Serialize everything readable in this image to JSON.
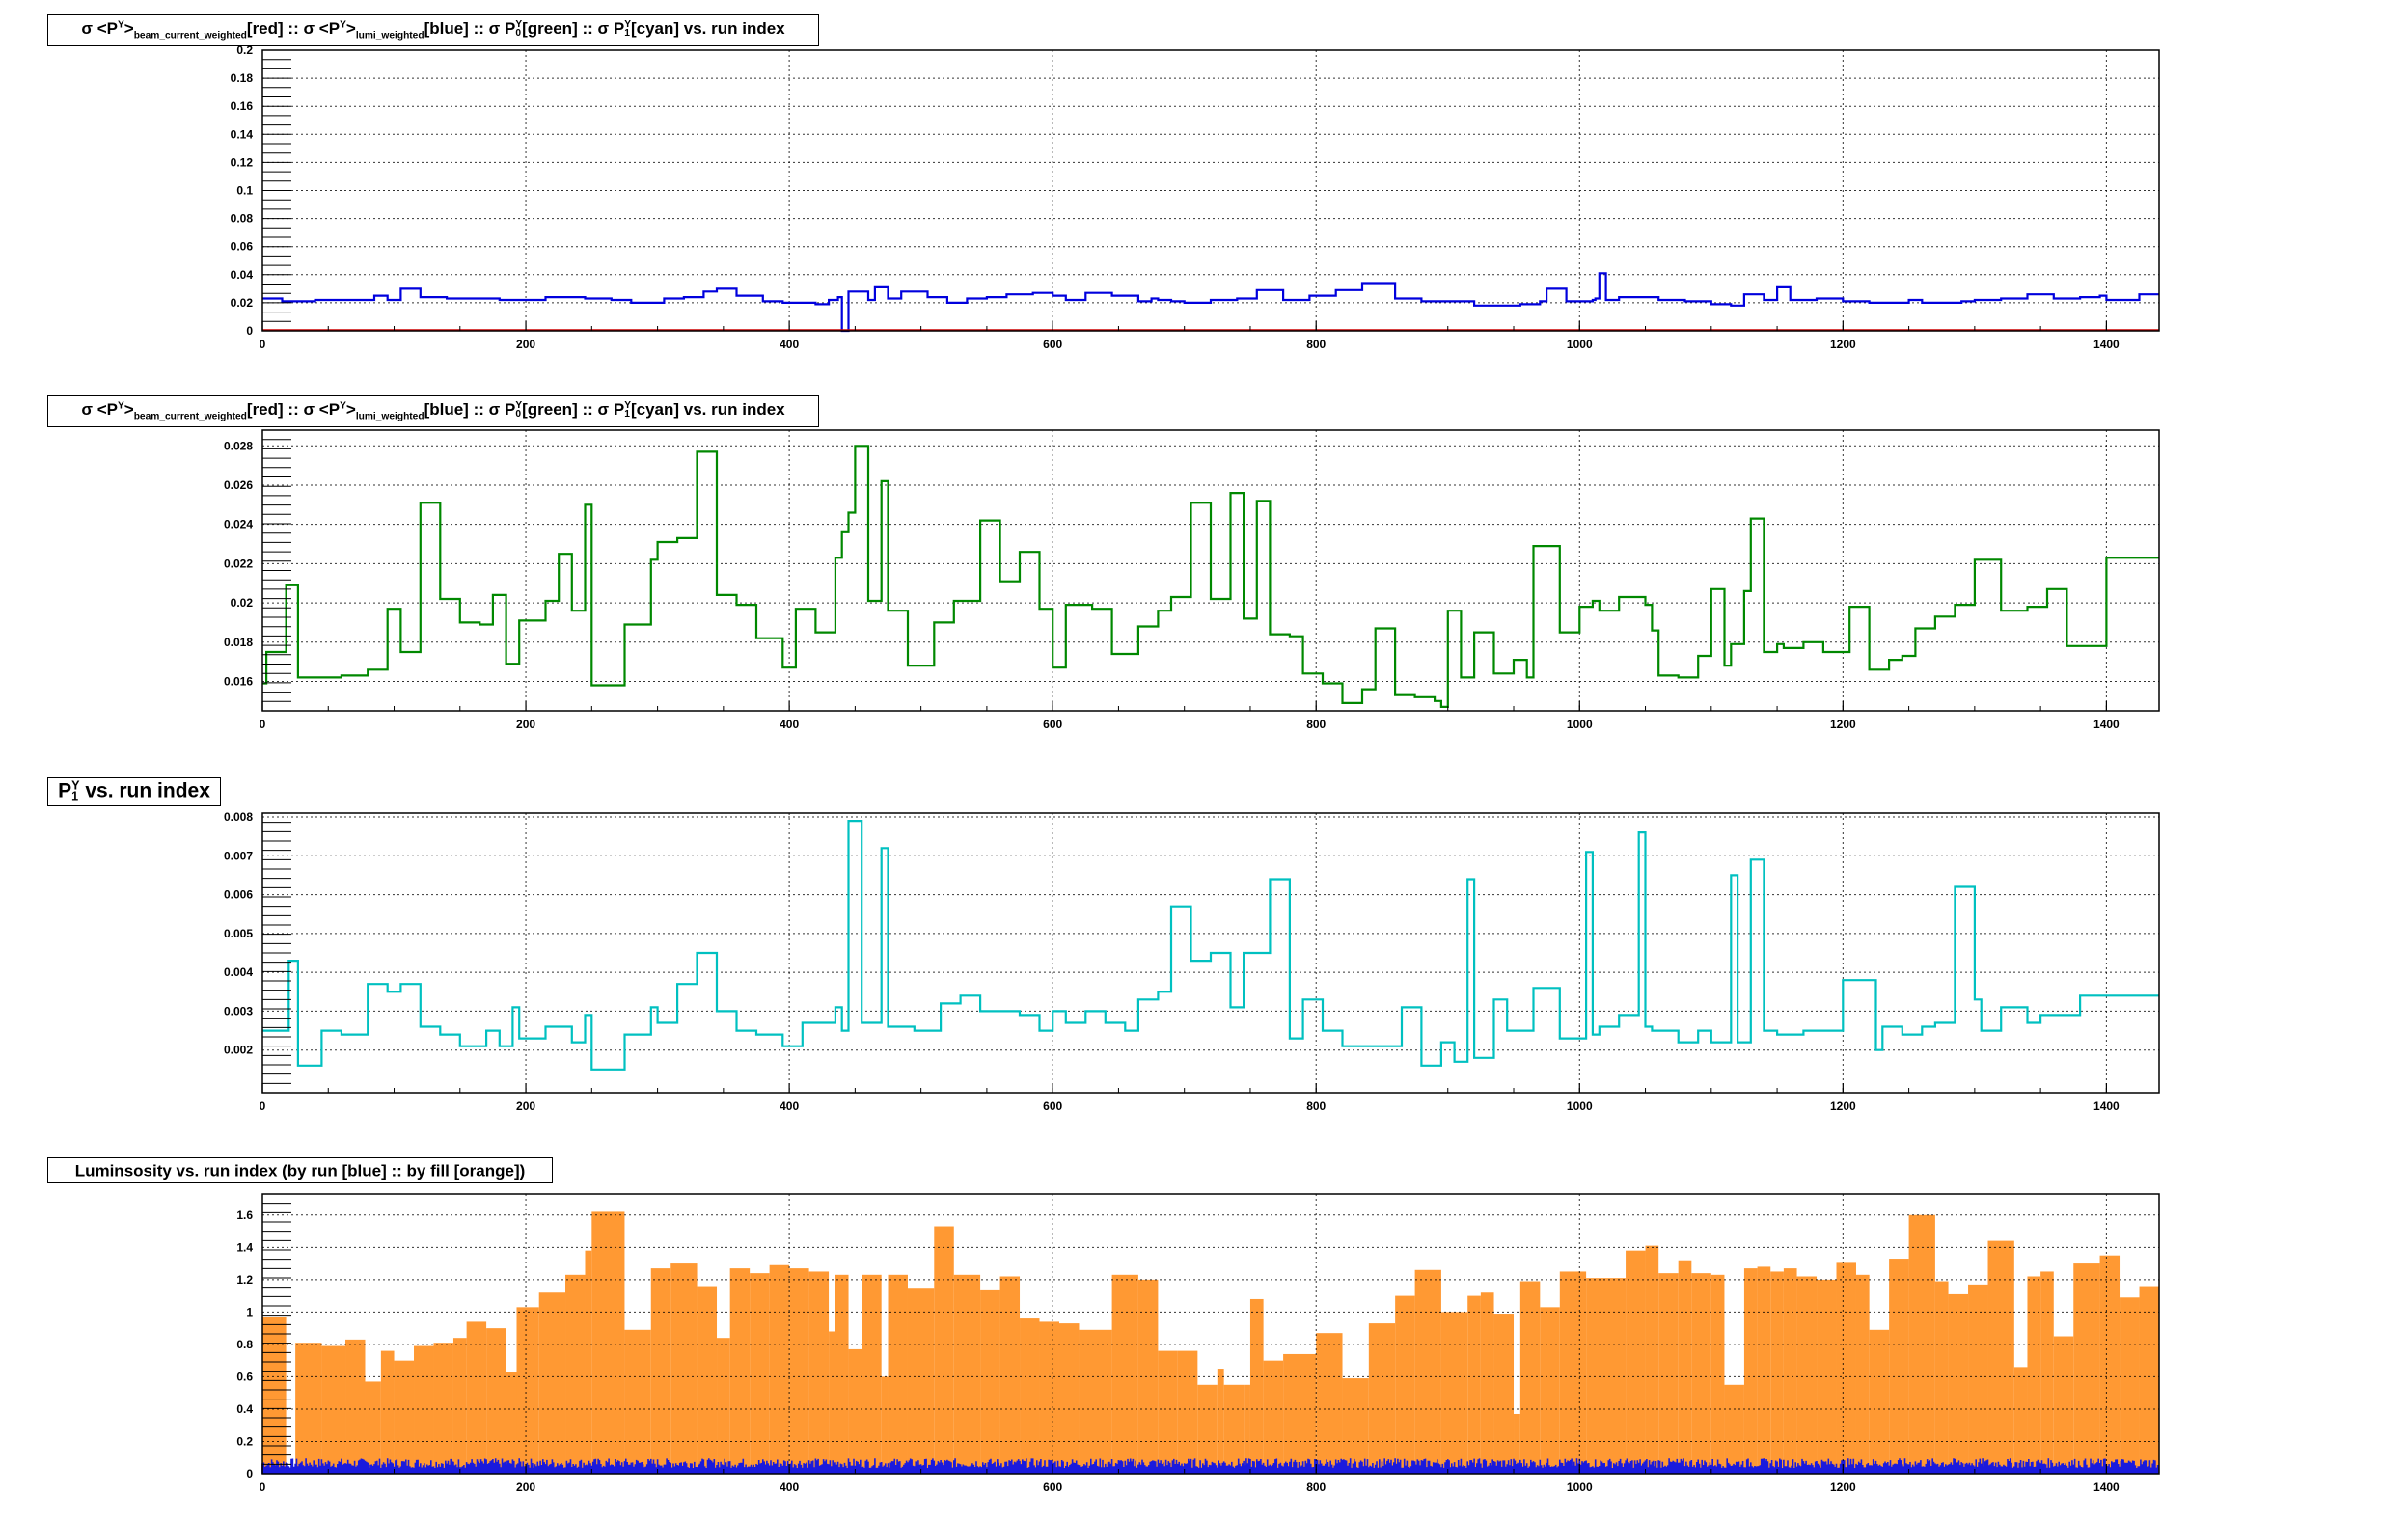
{
  "panels": [
    {
      "title": {
        "pre": "σ <P",
        "sup1": "Y",
        "post1": ">",
        "sub1": "beam_current_weighted",
        "mid1": "[red] :: σ <P",
        "sup2": "Y",
        "post2": ">",
        "sub2": "lumi_weighted",
        "mid2": "[blue] :: σ P",
        "sup3": "Y",
        "sub3": "0",
        "mid3": "[green] :: σ P",
        "sup4": "Y",
        "sub4": "1",
        "end": "[cyan] vs. run index"
      },
      "xticks": [
        "0",
        "200",
        "400",
        "600",
        "800",
        "1000",
        "1200",
        "1400"
      ],
      "yticks": [
        "0",
        "0.02",
        "0.04",
        "0.06",
        "0.08",
        "0.1",
        "0.12",
        "0.14",
        "0.16",
        "0.18",
        "0.2"
      ]
    },
    {
      "title": {
        "pre": "σ <P",
        "sup1": "Y",
        "post1": ">",
        "sub1": "beam_current_weighted",
        "mid1": "[red] :: σ <P",
        "sup2": "Y",
        "post2": ">",
        "sub2": "lumi_weighted",
        "mid2": "[blue] :: σ P",
        "sup3": "Y",
        "sub3": "0",
        "mid3": "[green] :: σ P",
        "sup4": "Y",
        "sub4": "1",
        "end": "[cyan] vs. run index"
      },
      "xticks": [
        "0",
        "200",
        "400",
        "600",
        "800",
        "1000",
        "1200",
        "1400"
      ],
      "yticks": [
        "0.016",
        "0.018",
        "0.02",
        "0.022",
        "0.024",
        "0.026",
        "0.028"
      ]
    },
    {
      "title": {
        "pre": "P",
        "sup1": "Y",
        "sub1": "1",
        "end": " vs. run index"
      },
      "xticks": [
        "0",
        "200",
        "400",
        "600",
        "800",
        "1000",
        "1200",
        "1400"
      ],
      "yticks": [
        "0.002",
        "0.003",
        "0.004",
        "0.005",
        "0.006",
        "0.007",
        "0.008"
      ]
    },
    {
      "title": {
        "text": "Luminsosity vs. run index (by run [blue] :: by fill [orange])"
      },
      "xticks": [
        "0",
        "200",
        "400",
        "600",
        "800",
        "1000",
        "1200",
        "1400"
      ],
      "yticks": [
        "0",
        "0.2",
        "0.4",
        "0.6",
        "0.8",
        "1",
        "1.2",
        "1.4",
        "1.6"
      ]
    }
  ],
  "chart_data": [
    {
      "type": "line",
      "title": "σ <P^Y>_beam_current_weighted[red] :: σ <P^Y>_lumi_weighted[blue] :: σ P^Y_0[green] :: σ P^Y_1[cyan] vs. run index",
      "xlabel": "",
      "ylabel": "",
      "xlim": [
        0,
        1440
      ],
      "ylim": [
        0,
        0.2
      ],
      "grid": true,
      "series": [
        {
          "color": "#0000dd",
          "x": [
            0,
            15,
            40,
            85,
            95,
            105,
            120,
            140,
            180,
            200,
            215,
            245,
            265,
            280,
            305,
            320,
            335,
            345,
            360,
            380,
            395,
            410,
            420,
            430,
            437,
            440,
            445,
            460,
            465,
            475,
            485,
            505,
            520,
            535,
            550,
            565,
            585,
            600,
            610,
            625,
            645,
            665,
            675,
            680,
            690,
            700,
            720,
            740,
            755,
            775,
            795,
            815,
            835,
            860,
            880,
            920,
            935,
            955,
            970,
            975,
            990,
            1010,
            1012,
            1015,
            1020,
            1030,
            1060,
            1080,
            1100,
            1115,
            1125,
            1140,
            1150,
            1160,
            1180,
            1200,
            1220,
            1250,
            1260,
            1290,
            1300,
            1320,
            1340,
            1360,
            1380,
            1395,
            1400,
            1425,
            1440
          ],
          "y": [
            0.023,
            0.021,
            0.022,
            0.025,
            0.022,
            0.03,
            0.024,
            0.023,
            0.022,
            0.022,
            0.024,
            0.023,
            0.022,
            0.02,
            0.023,
            0.024,
            0.028,
            0.03,
            0.025,
            0.021,
            0.02,
            0.02,
            0.019,
            0.022,
            0.024,
            0,
            0.028,
            0.022,
            0.031,
            0.023,
            0.028,
            0.024,
            0.02,
            0.023,
            0.024,
            0.026,
            0.027,
            0.025,
            0.022,
            0.027,
            0.025,
            0.021,
            0.023,
            0.022,
            0.021,
            0.02,
            0.022,
            0.023,
            0.029,
            0.022,
            0.025,
            0.029,
            0.034,
            0.023,
            0.021,
            0.018,
            0.018,
            0.019,
            0.021,
            0.03,
            0.021,
            0.022,
            0.023,
            0.041,
            0.022,
            0.024,
            0.022,
            0.021,
            0.019,
            0.018,
            0.026,
            0.022,
            0.031,
            0.022,
            0.023,
            0.021,
            0.02,
            0.022,
            0.02,
            0.021,
            0.022,
            0.023,
            0.026,
            0.023,
            0.024,
            0.025,
            0.022,
            0.026,
            0.026
          ]
        },
        {
          "color": "#cc0000",
          "x": [
            0,
            1440
          ],
          "y": [
            0.0005,
            0.0005
          ]
        }
      ]
    },
    {
      "type": "line",
      "title": "σ <P^Y>_beam_current_weighted[red] :: σ <P^Y>_lumi_weighted[blue] :: σ P^Y_0[green] :: σ P^Y_1[cyan] vs. run index",
      "xlabel": "",
      "ylabel": "",
      "xlim": [
        0,
        1440
      ],
      "ylim": [
        0.0145,
        0.0288
      ],
      "grid": true,
      "series": [
        {
          "color": "#008800",
          "x": [
            0,
            3,
            18,
            27,
            45,
            60,
            80,
            95,
            105,
            120,
            135,
            150,
            165,
            175,
            185,
            195,
            215,
            225,
            235,
            245,
            250,
            275,
            295,
            300,
            315,
            330,
            345,
            360,
            375,
            395,
            405,
            420,
            435,
            440,
            445,
            450,
            460,
            470,
            475,
            490,
            510,
            525,
            545,
            560,
            575,
            590,
            600,
            610,
            630,
            645,
            665,
            680,
            690,
            705,
            720,
            735,
            745,
            755,
            765,
            780,
            790,
            805,
            820,
            835,
            845,
            860,
            875,
            890,
            895,
            900,
            910,
            920,
            935,
            950,
            960,
            965,
            985,
            1000,
            1010,
            1015,
            1030,
            1050,
            1055,
            1060,
            1075,
            1090,
            1100,
            1110,
            1115,
            1125,
            1130,
            1140,
            1143,
            1150,
            1155,
            1170,
            1185,
            1195,
            1205,
            1220,
            1235,
            1245,
            1255,
            1270,
            1285,
            1300,
            1320,
            1340,
            1355,
            1370,
            1385,
            1400,
            1420,
            1430,
            1440
          ],
          "y": [
            0.0159,
            0.0175,
            0.0209,
            0.0162,
            0.0162,
            0.0163,
            0.0166,
            0.0197,
            0.0175,
            0.0251,
            0.0202,
            0.019,
            0.0189,
            0.0204,
            0.0169,
            0.0191,
            0.0201,
            0.0225,
            0.0196,
            0.025,
            0.0158,
            0.0189,
            0.0222,
            0.0231,
            0.0233,
            0.0277,
            0.0204,
            0.0199,
            0.0182,
            0.0167,
            0.0197,
            0.0185,
            0.0223,
            0.0236,
            0.0246,
            0.028,
            0.0201,
            0.0262,
            0.0196,
            0.0168,
            0.019,
            0.0201,
            0.0242,
            0.0211,
            0.0226,
            0.0197,
            0.0167,
            0.0199,
            0.0197,
            0.0174,
            0.0188,
            0.0196,
            0.0203,
            0.0251,
            0.0202,
            0.0256,
            0.0192,
            0.0252,
            0.0184,
            0.0183,
            0.0164,
            0.0159,
            0.0149,
            0.0156,
            0.0187,
            0.0153,
            0.0152,
            0.015,
            0.0147,
            0.0196,
            0.0162,
            0.0185,
            0.0164,
            0.0171,
            0.0162,
            0.0229,
            0.0185,
            0.0198,
            0.0201,
            0.0196,
            0.0203,
            0.0199,
            0.0186,
            0.0163,
            0.0162,
            0.0173,
            0.0207,
            0.0168,
            0.0179,
            0.0206,
            0.0243,
            0.0175,
            0.0175,
            0.0179,
            0.0177,
            0.018,
            0.0175,
            0.0175,
            0.0198,
            0.0166,
            0.0171,
            0.0173,
            0.0187,
            0.0193,
            0.0199,
            0.0222,
            0.0196,
            0.0198,
            0.0207,
            0.0178,
            0.0178,
            0.0223,
            0.0223,
            0.0223,
            0.0223
          ]
        }
      ]
    },
    {
      "type": "line",
      "title": "P^Y_1 vs. run index",
      "xlabel": "",
      "ylabel": "",
      "xlim": [
        0,
        1440
      ],
      "ylim": [
        0.0009,
        0.0081
      ],
      "grid": true,
      "series": [
        {
          "color": "#00c0c0",
          "x": [
            0,
            20,
            27,
            45,
            60,
            80,
            95,
            105,
            120,
            135,
            150,
            170,
            180,
            190,
            195,
            215,
            235,
            245,
            250,
            275,
            295,
            300,
            315,
            330,
            345,
            360,
            375,
            395,
            410,
            435,
            440,
            445,
            455,
            470,
            475,
            495,
            515,
            530,
            545,
            560,
            575,
            590,
            600,
            610,
            625,
            640,
            655,
            665,
            680,
            690,
            705,
            720,
            735,
            745,
            765,
            780,
            790,
            805,
            820,
            840,
            860,
            865,
            880,
            895,
            905,
            915,
            920,
            935,
            945,
            965,
            985,
            1000,
            1005,
            1010,
            1015,
            1030,
            1045,
            1050,
            1055,
            1075,
            1090,
            1100,
            1115,
            1120,
            1130,
            1140,
            1150,
            1160,
            1170,
            1200,
            1225,
            1230,
            1245,
            1260,
            1270,
            1285,
            1300,
            1305,
            1320,
            1340,
            1350,
            1360,
            1380,
            1395,
            1400,
            1420,
            1430,
            1440
          ],
          "y": [
            0.0025,
            0.0043,
            0.0016,
            0.0025,
            0.0024,
            0.0037,
            0.0035,
            0.0037,
            0.0026,
            0.0024,
            0.0021,
            0.0025,
            0.0021,
            0.0031,
            0.0023,
            0.0026,
            0.0022,
            0.0029,
            0.0015,
            0.0024,
            0.0031,
            0.0027,
            0.0037,
            0.0045,
            0.003,
            0.0025,
            0.0024,
            0.0021,
            0.0027,
            0.0031,
            0.0025,
            0.0079,
            0.0027,
            0.0072,
            0.0026,
            0.0025,
            0.0032,
            0.0034,
            0.003,
            0.003,
            0.0029,
            0.0025,
            0.003,
            0.0027,
            0.003,
            0.0027,
            0.0025,
            0.0033,
            0.0035,
            0.0057,
            0.0043,
            0.0045,
            0.0031,
            0.0045,
            0.0064,
            0.0023,
            0.0033,
            0.0025,
            0.0021,
            0.0021,
            0.0021,
            0.0031,
            0.0016,
            0.0022,
            0.0017,
            0.0064,
            0.0018,
            0.0033,
            0.0025,
            0.0036,
            0.0023,
            0.0023,
            0.0071,
            0.0024,
            0.0026,
            0.0029,
            0.0076,
            0.0026,
            0.0025,
            0.0022,
            0.0025,
            0.0022,
            0.0065,
            0.0022,
            0.0069,
            0.0025,
            0.0024,
            0.0024,
            0.0025,
            0.0038,
            0.002,
            0.0026,
            0.0024,
            0.0026,
            0.0027,
            0.0062,
            0.0033,
            0.0025,
            0.0031,
            0.0027,
            0.0029,
            0.0029,
            0.0034,
            0.0034,
            0.0034,
            0.0034,
            0.0034,
            0.0034
          ]
        }
      ]
    },
    {
      "type": "bar",
      "title": "Luminsosity vs. run index (by run [blue] :: by fill [orange])",
      "xlabel": "",
      "ylabel": "",
      "xlim": [
        0,
        1440
      ],
      "ylim": [
        0,
        1.73
      ],
      "grid": true,
      "series": [
        {
          "color": "#ff9933",
          "x": [
            0,
            18,
            25,
            45,
            63,
            78,
            90,
            100,
            115,
            130,
            145,
            155,
            170,
            185,
            193,
            210,
            230,
            245,
            250,
            275,
            295,
            310,
            330,
            345,
            355,
            370,
            385,
            400,
            415,
            430,
            435,
            445,
            455,
            470,
            475,
            490,
            510,
            525,
            545,
            560,
            575,
            590,
            605,
            620,
            645,
            665,
            680,
            695,
            710,
            725,
            730,
            745,
            750,
            760,
            775,
            800,
            820,
            840,
            860,
            875,
            895,
            915,
            925,
            935,
            950,
            955,
            970,
            985,
            1005,
            1035,
            1050,
            1060,
            1075,
            1085,
            1100,
            1110,
            1125,
            1135,
            1145,
            1155,
            1165,
            1180,
            1195,
            1210,
            1220,
            1235,
            1250,
            1270,
            1280,
            1295,
            1310,
            1330,
            1340,
            1350,
            1360,
            1375,
            1395,
            1410,
            1425,
            1440
          ],
          "y": [
            0.97,
            0.01,
            0.81,
            0.79,
            0.83,
            0.57,
            0.76,
            0.7,
            0.79,
            0.81,
            0.84,
            0.94,
            0.9,
            0.63,
            1.03,
            1.12,
            1.23,
            1.38,
            1.62,
            0.89,
            1.27,
            1.3,
            1.16,
            0.84,
            1.27,
            1.24,
            1.29,
            1.27,
            1.25,
            0.88,
            1.23,
            0.77,
            1.23,
            0.6,
            1.23,
            1.15,
            1.53,
            1.23,
            1.14,
            1.22,
            0.96,
            0.94,
            0.93,
            0.89,
            1.23,
            1.2,
            0.76,
            0.76,
            0.55,
            0.65,
            0.55,
            0.55,
            1.08,
            0.7,
            0.74,
            0.87,
            0.59,
            0.93,
            1.1,
            1.26,
            1.0,
            1.1,
            1.12,
            0.99,
            0.37,
            1.19,
            1.03,
            1.25,
            1.21,
            1.38,
            1.41,
            1.24,
            1.32,
            1.24,
            1.23,
            0.55,
            1.27,
            1.28,
            1.25,
            1.27,
            1.22,
            1.2,
            1.31,
            1.23,
            0.89,
            1.33,
            1.6,
            1.19,
            1.11,
            1.17,
            1.44,
            0.66,
            1.22,
            1.25,
            0.85,
            1.3,
            1.35,
            1.09,
            1.16,
            1.16
          ]
        },
        {
          "color": "#1a1add",
          "x": [
            0,
            1440
          ],
          "y": [
            0.065,
            0.065
          ]
        }
      ]
    }
  ]
}
